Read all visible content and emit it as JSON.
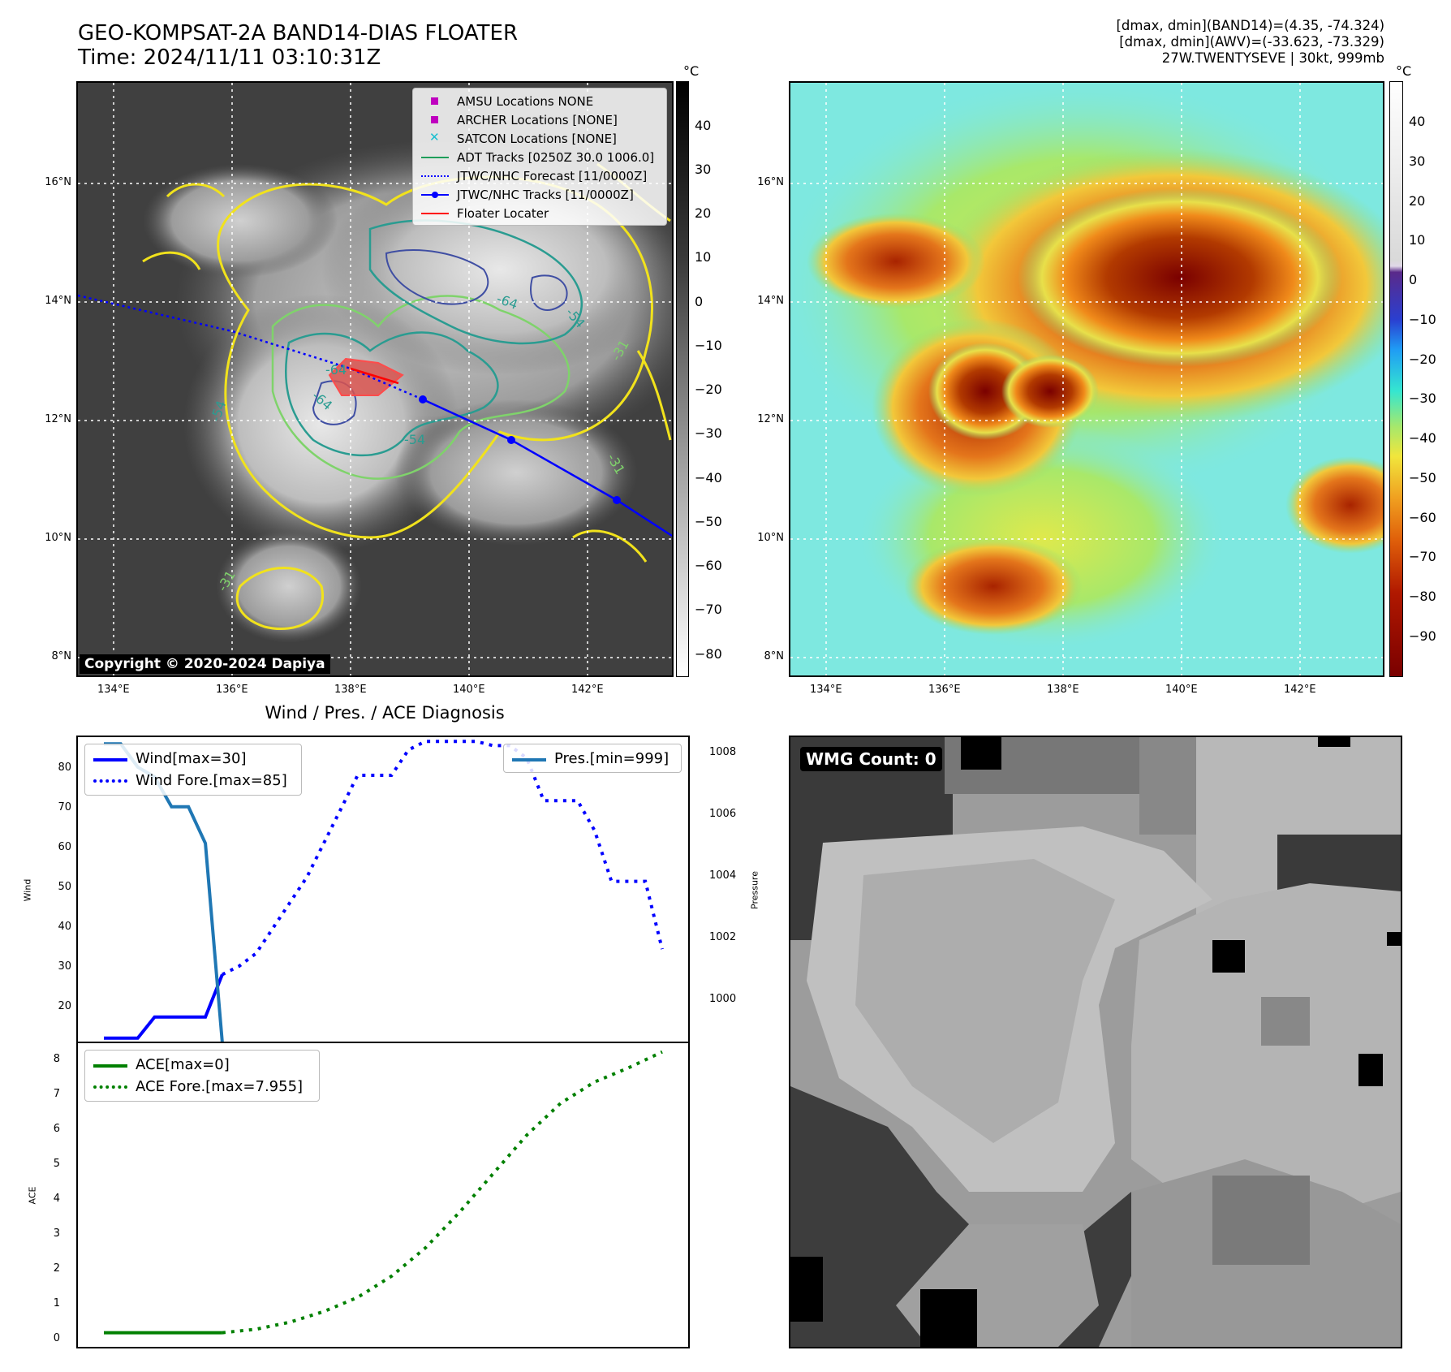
{
  "header": {
    "title_line1": "GEO-KOMPSAT-2A BAND14-DIAS FLOATER",
    "title_line2": "Time: 2024/11/11 03:10:31Z",
    "info_line1": "[dmax, dmin](BAND14)=(4.35, -74.324)",
    "info_line2": "[dmax, dmin](AWV)=(-33.623, -73.329)",
    "info_line3": "27W.TWENTYSEVE | 30kt, 999mb"
  },
  "map_ir": {
    "lat_labels": [
      "16°N",
      "14°N",
      "12°N",
      "10°N",
      "8°N"
    ],
    "lon_labels": [
      "134°E",
      "136°E",
      "138°E",
      "140°E",
      "142°E"
    ],
    "contour_labels": [
      "-64",
      "-64",
      "-54",
      "-54",
      "-64",
      "-31",
      "-31",
      "-54",
      "-31"
    ],
    "copyright": "Copyright © 2020-2024 Dapiya",
    "legend": [
      {
        "label": "AMSU Locations NONE",
        "symbol": "square",
        "color": "#bf00bf"
      },
      {
        "label": "ARCHER Locations [NONE]",
        "symbol": "square",
        "color": "#bf00bf"
      },
      {
        "label": "SATCON Locations [NONE]",
        "symbol": "x",
        "color": "#17becf"
      },
      {
        "label": "ADT Tracks [0250Z 30.0 1006.0]",
        "symbol": "line",
        "color": "#1f9e5a"
      },
      {
        "label": "JTWC/NHC Forecast [11/0000Z]",
        "symbol": "dotted",
        "color": "#0000ff"
      },
      {
        "label": "JTWC/NHC Tracks [11/0000Z]",
        "symbol": "line-dot",
        "color": "#0000ff"
      },
      {
        "label": "Floater Locater",
        "symbol": "line",
        "color": "#ff0000"
      }
    ],
    "colorbar_unit": "°C",
    "colorbar_ticks": [
      "40",
      "30",
      "20",
      "10",
      "0",
      "−10",
      "−20",
      "−30",
      "−40",
      "−50",
      "−60",
      "−70",
      "−80"
    ]
  },
  "map_awv": {
    "lat_labels": [
      "16°N",
      "14°N",
      "12°N",
      "10°N",
      "8°N"
    ],
    "lon_labels": [
      "134°E",
      "136°E",
      "138°E",
      "140°E",
      "142°E"
    ],
    "colorbar_unit": "°C",
    "colorbar_ticks": [
      "40",
      "30",
      "20",
      "10",
      "0",
      "−10",
      "−20",
      "−30",
      "−40",
      "−50",
      "−60",
      "−70",
      "−80",
      "−90"
    ]
  },
  "wmg": {
    "label": "WMG Count: 0"
  },
  "colors": {
    "wind": "#0000ff",
    "pressure": "#1f77b4",
    "ace": "#008000",
    "storm_track": "#0000ff"
  },
  "chart_data": [
    {
      "type": "line",
      "title": "Wind / Pres. / ACE Diagnosis",
      "ylabel": "Wind",
      "ylim": [
        14,
        86
      ],
      "yticks": [
        "80",
        "70",
        "60",
        "50",
        "40",
        "30",
        "20"
      ],
      "series": [
        {
          "name": "Wind[max=30]",
          "style": "solid",
          "points": [
            [
              0,
              15
            ],
            [
              1,
              15
            ],
            [
              2,
              15
            ],
            [
              3,
              20
            ],
            [
              4,
              20
            ],
            [
              5,
              20
            ],
            [
              6,
              20
            ],
            [
              7,
              30
            ]
          ]
        },
        {
          "name": "Wind Fore.[max=85]",
          "style": "dotted",
          "points": [
            [
              7,
              30
            ],
            [
              8,
              32
            ],
            [
              9,
              35
            ],
            [
              10,
              41
            ],
            [
              11,
              47
            ],
            [
              12,
              53
            ],
            [
              13,
              61
            ],
            [
              14,
              69
            ],
            [
              15,
              77
            ],
            [
              16,
              77
            ],
            [
              17,
              77
            ],
            [
              18,
              83
            ],
            [
              19,
              85
            ],
            [
              20,
              85
            ],
            [
              21,
              85
            ],
            [
              22,
              85
            ],
            [
              23,
              84
            ],
            [
              24,
              84
            ],
            [
              25,
              81
            ],
            [
              26,
              71
            ],
            [
              27,
              71
            ],
            [
              28,
              71
            ],
            [
              29,
              64
            ],
            [
              30,
              52
            ],
            [
              31,
              52
            ],
            [
              32,
              52
            ],
            [
              33,
              36
            ]
          ]
        }
      ]
    },
    {
      "type": "line",
      "ylabel": "Pressure",
      "ylim": [
        999,
        1008.2
      ],
      "yticks": [
        "1008",
        "1006",
        "1004",
        "1002",
        "1000"
      ],
      "series": [
        {
          "name": "Pres.[min=999]",
          "style": "solid",
          "points": [
            [
              0,
              1008
            ],
            [
              1,
              1008
            ],
            [
              2,
              1007.3
            ],
            [
              3,
              1007
            ],
            [
              4,
              1006.1
            ],
            [
              5,
              1006.1
            ],
            [
              6,
              1005
            ],
            [
              7,
              999
            ]
          ]
        }
      ]
    },
    {
      "type": "line",
      "ylabel": "ACE",
      "ylim": [
        -0.4,
        8.2
      ],
      "yticks": [
        "8",
        "7",
        "6",
        "5",
        "4",
        "3",
        "2",
        "1",
        "0"
      ],
      "series": [
        {
          "name": "ACE[max=0]",
          "style": "solid",
          "points": [
            [
              0,
              0
            ],
            [
              7,
              0
            ]
          ]
        },
        {
          "name": "ACE Fore.[max=7.955]",
          "style": "dotted",
          "points": [
            [
              7,
              0
            ],
            [
              9,
              0.1
            ],
            [
              11,
              0.3
            ],
            [
              13,
              0.6
            ],
            [
              15,
              1.0
            ],
            [
              17,
              1.6
            ],
            [
              19,
              2.4
            ],
            [
              21,
              3.4
            ],
            [
              23,
              4.5
            ],
            [
              25,
              5.6
            ],
            [
              27,
              6.5
            ],
            [
              29,
              7.1
            ],
            [
              31,
              7.5
            ],
            [
              33,
              7.955
            ]
          ]
        }
      ]
    }
  ]
}
